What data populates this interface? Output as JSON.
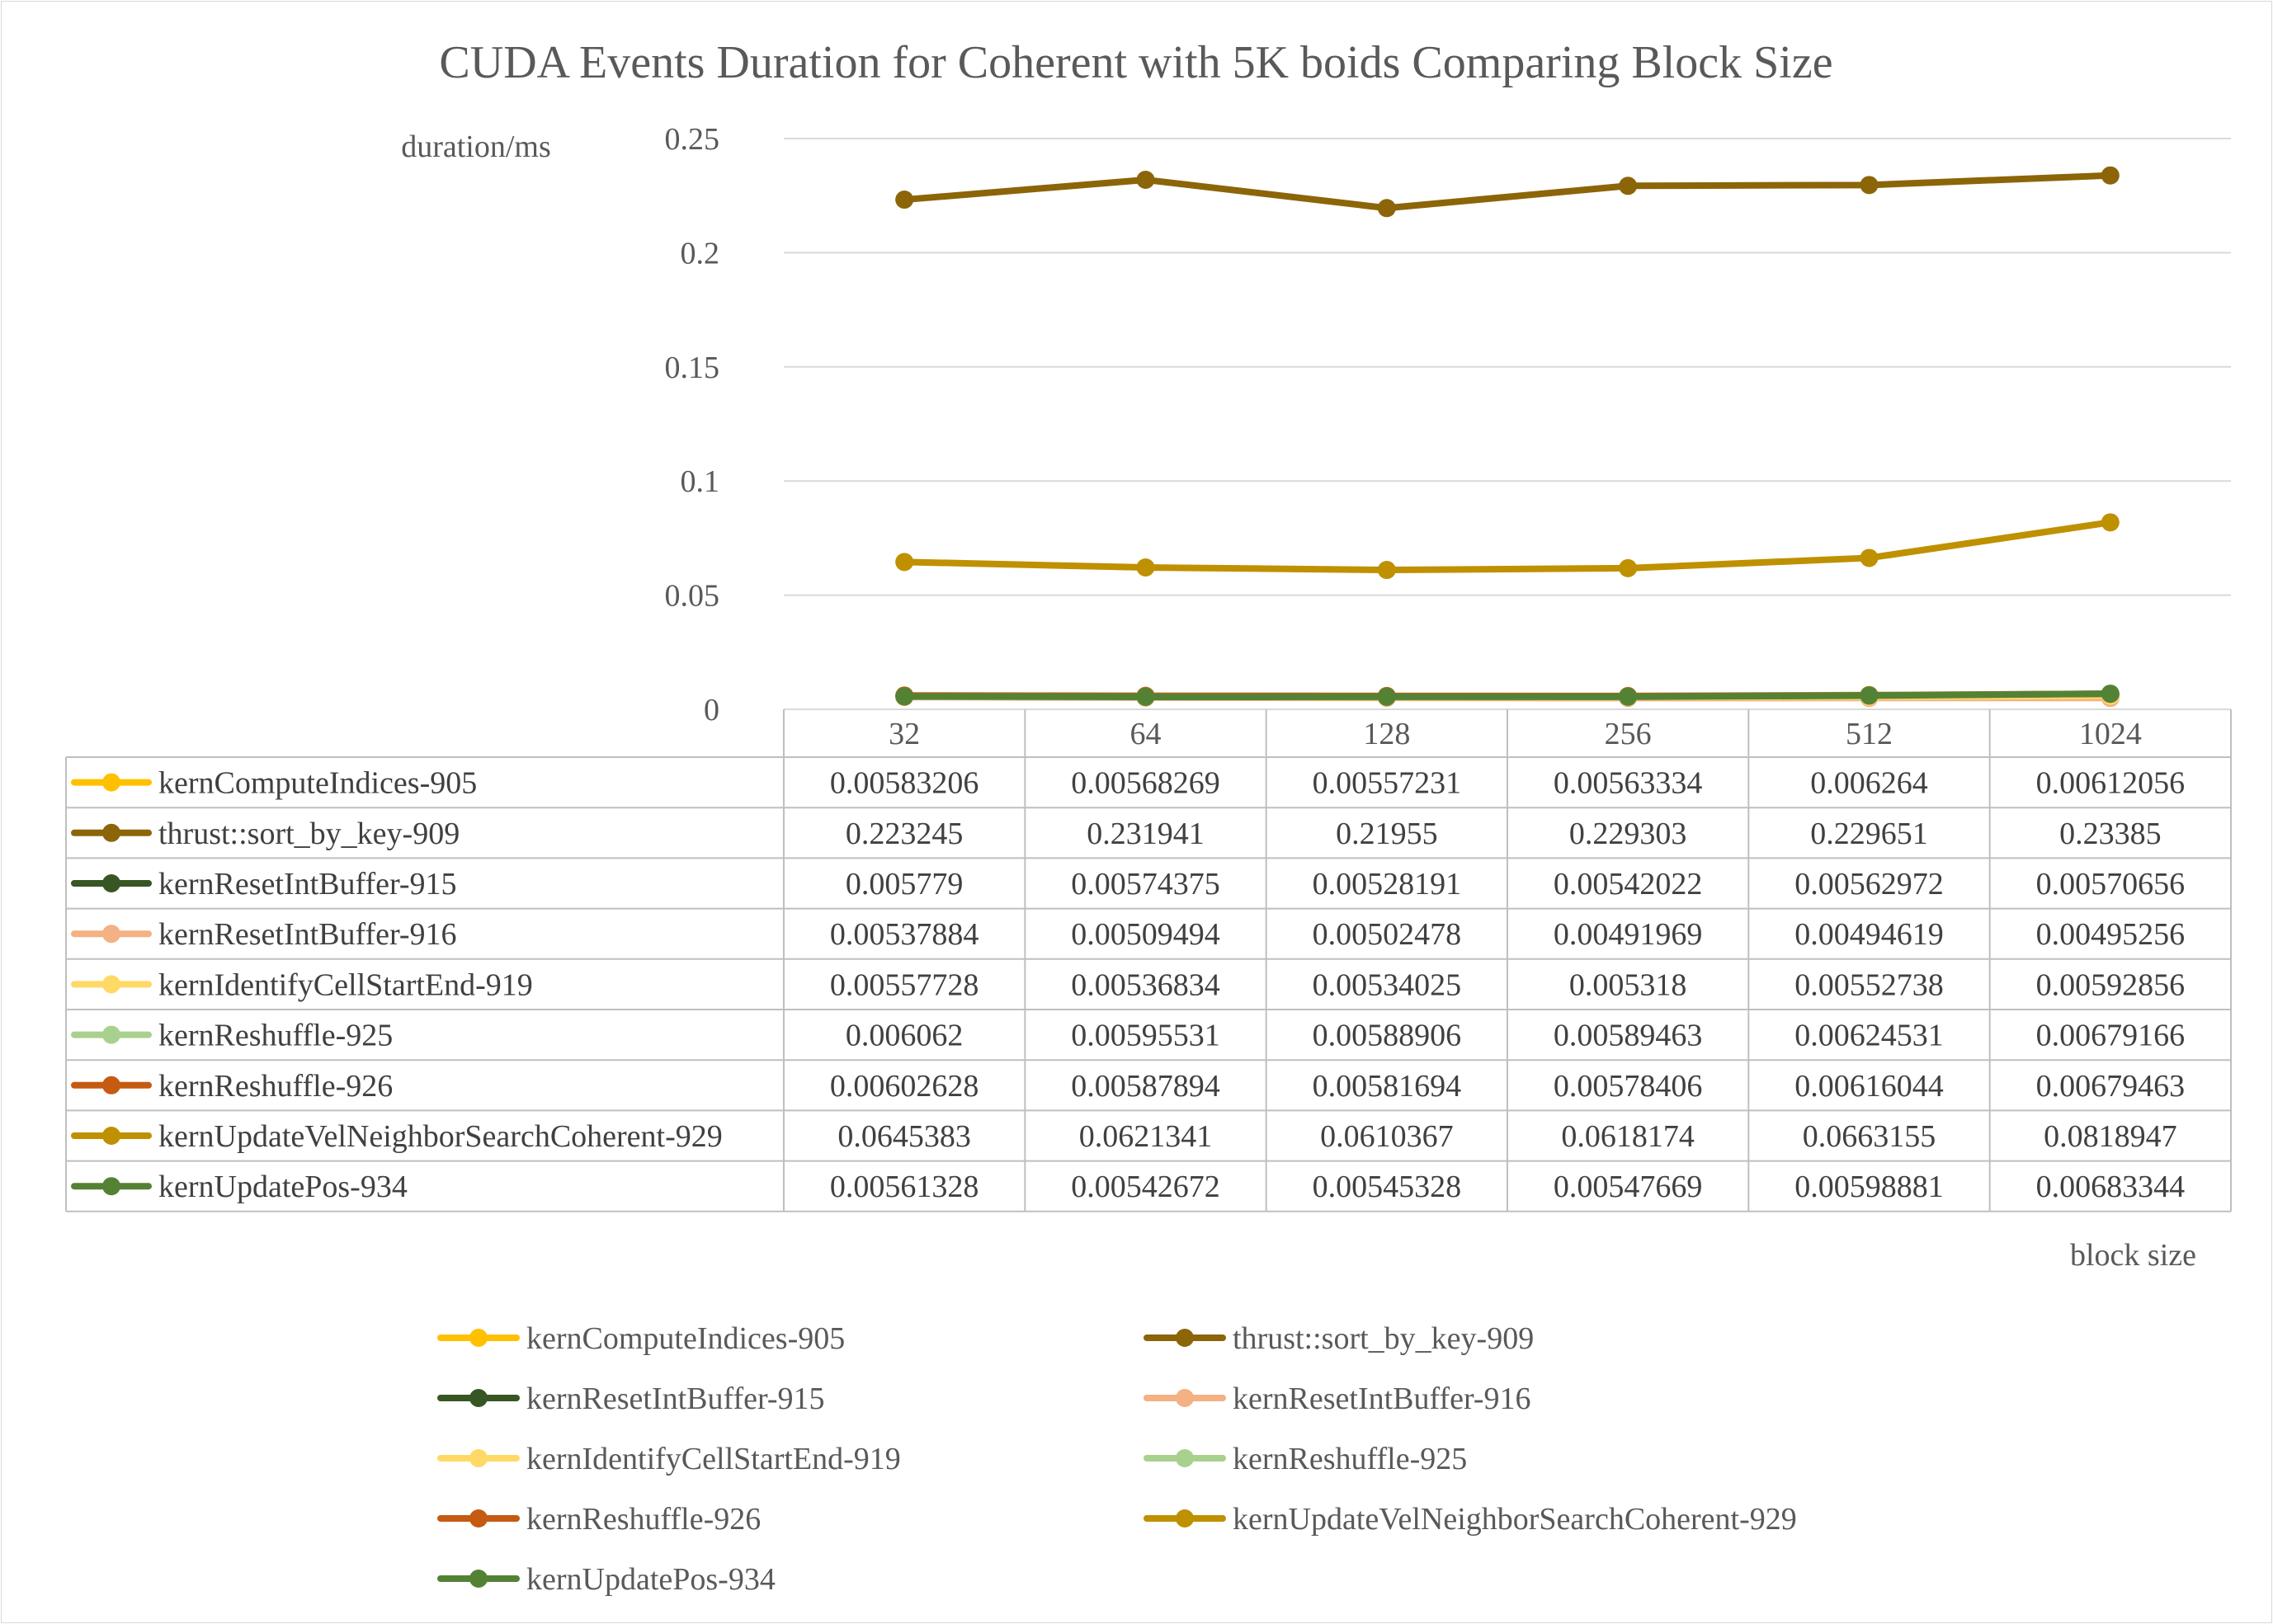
{
  "chart_data": {
    "type": "line",
    "title": "CUDA Events Duration for Coherent with 5K boids Comparing Block Size",
    "ylabel": "duration/ms",
    "xlabel": "block size",
    "ylim": [
      0,
      0.25
    ],
    "yticks": [
      "0",
      "0.05",
      "0.1",
      "0.15",
      "0.2",
      "0.25"
    ],
    "ytick_values": [
      0,
      0.05,
      0.1,
      0.15,
      0.2,
      0.25
    ],
    "grid": true,
    "legend_position": "bottom",
    "data_table": true,
    "categories": [
      "32",
      "64",
      "128",
      "256",
      "512",
      "1024"
    ],
    "series": [
      {
        "name": "kernComputeIndices-905",
        "color": "#FFC000",
        "values": [
          0.00583206,
          0.00568269,
          0.00557231,
          0.00563334,
          0.006264,
          0.00612056
        ],
        "labels": [
          "0.00583206",
          "0.00568269",
          "0.00557231",
          "0.00563334",
          "0.006264",
          "0.00612056"
        ]
      },
      {
        "name": "thrust::sort_by_key-909",
        "color": "#8B6508",
        "values": [
          0.223245,
          0.231941,
          0.21955,
          0.229303,
          0.229651,
          0.23385
        ],
        "labels": [
          "0.223245",
          "0.231941",
          "0.21955",
          "0.229303",
          "0.229651",
          "0.23385"
        ]
      },
      {
        "name": "kernResetIntBuffer-915",
        "color": "#375623",
        "values": [
          0.005779,
          0.00574375,
          0.00528191,
          0.00542022,
          0.00562972,
          0.00570656
        ],
        "labels": [
          "0.005779",
          "0.00574375",
          "0.00528191",
          "0.00542022",
          "0.00562972",
          "0.00570656"
        ]
      },
      {
        "name": "kernResetIntBuffer-916",
        "color": "#F4B183",
        "values": [
          0.00537884,
          0.00509494,
          0.00502478,
          0.00491969,
          0.00494619,
          0.00495256
        ],
        "labels": [
          "0.00537884",
          "0.00509494",
          "0.00502478",
          "0.00491969",
          "0.00494619",
          "0.00495256"
        ]
      },
      {
        "name": "kernIdentifyCellStartEnd-919",
        "color": "#FFD966",
        "values": [
          0.00557728,
          0.00536834,
          0.00534025,
          0.005318,
          0.00552738,
          0.00592856
        ],
        "labels": [
          "0.00557728",
          "0.00536834",
          "0.00534025",
          "0.005318",
          "0.00552738",
          "0.00592856"
        ]
      },
      {
        "name": "kernReshuffle-925",
        "color": "#A9D18E",
        "values": [
          0.006062,
          0.00595531,
          0.00588906,
          0.00589463,
          0.00624531,
          0.00679166
        ],
        "labels": [
          "0.006062",
          "0.00595531",
          "0.00588906",
          "0.00589463",
          "0.00624531",
          "0.00679166"
        ]
      },
      {
        "name": "kernReshuffle-926",
        "color": "#C55A11",
        "values": [
          0.00602628,
          0.00587894,
          0.00581694,
          0.00578406,
          0.00616044,
          0.00679463
        ],
        "labels": [
          "0.00602628",
          "0.00587894",
          "0.00581694",
          "0.00578406",
          "0.00616044",
          "0.00679463"
        ]
      },
      {
        "name": "kernUpdateVelNeighborSearchCoherent-929",
        "color": "#BF9000",
        "values": [
          0.0645383,
          0.0621341,
          0.0610367,
          0.0618174,
          0.0663155,
          0.0818947
        ],
        "labels": [
          "0.0645383",
          "0.0621341",
          "0.0610367",
          "0.0618174",
          "0.0663155",
          "0.0818947"
        ]
      },
      {
        "name": "kernUpdatePos-934",
        "color": "#548235",
        "values": [
          0.00561328,
          0.00542672,
          0.00545328,
          0.00547669,
          0.00598881,
          0.00683344
        ],
        "labels": [
          "0.00561328",
          "0.00542672",
          "0.00545328",
          "0.00547669",
          "0.00598881",
          "0.00683344"
        ]
      }
    ]
  }
}
